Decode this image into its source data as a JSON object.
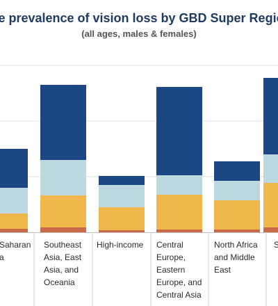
{
  "chart_data": {
    "type": "bar",
    "stacked": true,
    "title": "ude prevalence of vision loss by GBD Super Region,",
    "subtitle": "(all ages, males & females)",
    "categories": [
      "Saharan\na",
      "Southeast\nAsia, East\nAsia, and\nOceania",
      "High-income",
      "Central\nEurope,\nEastern\nEurope, and\nCentral Asia",
      "North Africa\nand Middle\nEast",
      "S"
    ],
    "series": [
      {
        "color": "#c8694a",
        "values": [
          5,
          7,
          3,
          4,
          4,
          7
        ]
      },
      {
        "color": "#f0b84a",
        "values": [
          22,
          46,
          33,
          50,
          42,
          64
        ]
      },
      {
        "color": "#bcd9e0",
        "values": [
          37,
          51,
          32,
          28,
          28,
          41
        ]
      },
      {
        "color": "#1d4784",
        "values": [
          56,
          108,
          13,
          127,
          28,
          110
        ]
      }
    ],
    "ylim": [
      0,
      240
    ],
    "grid": true,
    "xlabel": "",
    "ylabel": ""
  },
  "colors": {
    "gridline": "#e2e2e2",
    "axis": "#bdbdbd",
    "separator": "#d0d0d0"
  }
}
